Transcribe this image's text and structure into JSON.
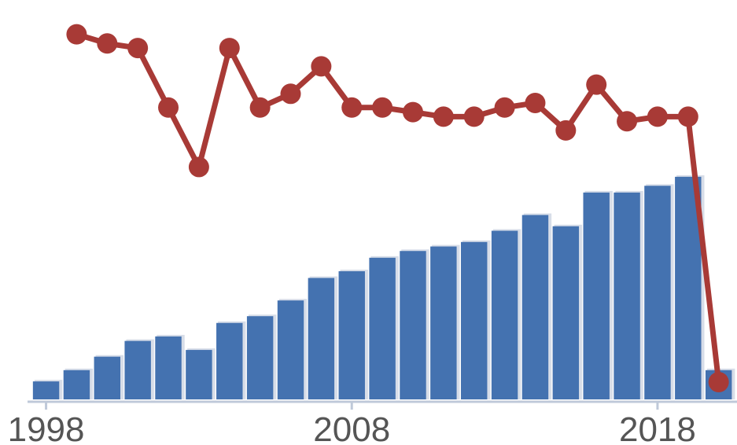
{
  "chart_data": {
    "type": "bar",
    "x": [
      1998,
      1999,
      2000,
      2001,
      2002,
      2003,
      2004,
      2005,
      2006,
      2007,
      2008,
      2009,
      2010,
      2011,
      2012,
      2013,
      2014,
      2015,
      2016,
      2017,
      2018,
      2019,
      2020
    ],
    "xlim": [
      1997.6,
      2020.6
    ],
    "x_tick_labels": [
      "1998",
      "2008",
      "2018"
    ],
    "x_tick_values": [
      1998,
      2008,
      2018
    ],
    "series": [
      {
        "kind": "bar",
        "color": "#4472B0",
        "values": [
          8,
          13,
          19,
          26,
          28,
          22,
          34,
          37,
          44,
          54,
          57,
          63,
          66,
          68,
          70,
          75,
          82,
          77,
          92,
          92,
          95,
          99,
          13
        ],
        "ylim": [
          0,
          100
        ]
      },
      {
        "kind": "line",
        "color": "#A83A36",
        "values": [
          null,
          98,
          96,
          95,
          82,
          69,
          95,
          82,
          85,
          91,
          82,
          82,
          81,
          80,
          80,
          82,
          83,
          77,
          87,
          79,
          80,
          80,
          22
        ],
        "ylim": [
          0,
          100
        ]
      }
    ],
    "grid": false,
    "legend": "none"
  }
}
